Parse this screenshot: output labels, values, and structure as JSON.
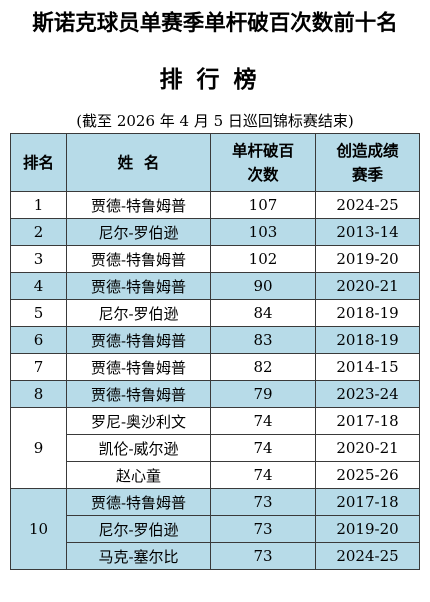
{
  "headline": "斯诺克球员单赛季单杆破百次数前十名",
  "subtitle": "排行榜",
  "note": "(截至 2026 年 4 月 5 日巡回锦标赛结束)",
  "table": {
    "headers": {
      "rank": "排名",
      "name": "姓  名",
      "count_line1": "单杆破百",
      "count_line2": "次数",
      "season_line1": "创造成绩",
      "season_line2": "赛季"
    },
    "rows": [
      {
        "rank": "1",
        "name": "贾德-特鲁姆普",
        "count": "107",
        "season": "2024-25"
      },
      {
        "rank": "2",
        "name": "尼尔-罗伯逊",
        "count": "103",
        "season": "2013-14"
      },
      {
        "rank": "3",
        "name": "贾德-特鲁姆普",
        "count": "102",
        "season": "2019-20"
      },
      {
        "rank": "4",
        "name": "贾德-特鲁姆普",
        "count": "90",
        "season": "2020-21"
      },
      {
        "rank": "5",
        "name": "尼尔-罗伯逊",
        "count": "84",
        "season": "2018-19"
      },
      {
        "rank": "6",
        "name": "贾德-特鲁姆普",
        "count": "83",
        "season": "2018-19"
      },
      {
        "rank": "7",
        "name": "贾德-特鲁姆普",
        "count": "82",
        "season": "2014-15"
      },
      {
        "rank": "8",
        "name": "贾德-特鲁姆普",
        "count": "79",
        "season": "2023-24"
      },
      {
        "rank": "9",
        "name": "罗尼-奥沙利文",
        "count": "74",
        "season": "2017-18"
      },
      {
        "rank": "",
        "name": "凯伦-威尔逊",
        "count": "74",
        "season": "2020-21"
      },
      {
        "rank": "",
        "name": "赵心童",
        "count": "74",
        "season": "2025-26"
      },
      {
        "rank": "10",
        "name": "贾德-特鲁姆普",
        "count": "73",
        "season": "2017-18"
      },
      {
        "rank": "",
        "name": "尼尔-罗伯逊",
        "count": "73",
        "season": "2019-20"
      },
      {
        "rank": "",
        "name": "马克-塞尔比",
        "count": "73",
        "season": "2024-25"
      }
    ]
  }
}
